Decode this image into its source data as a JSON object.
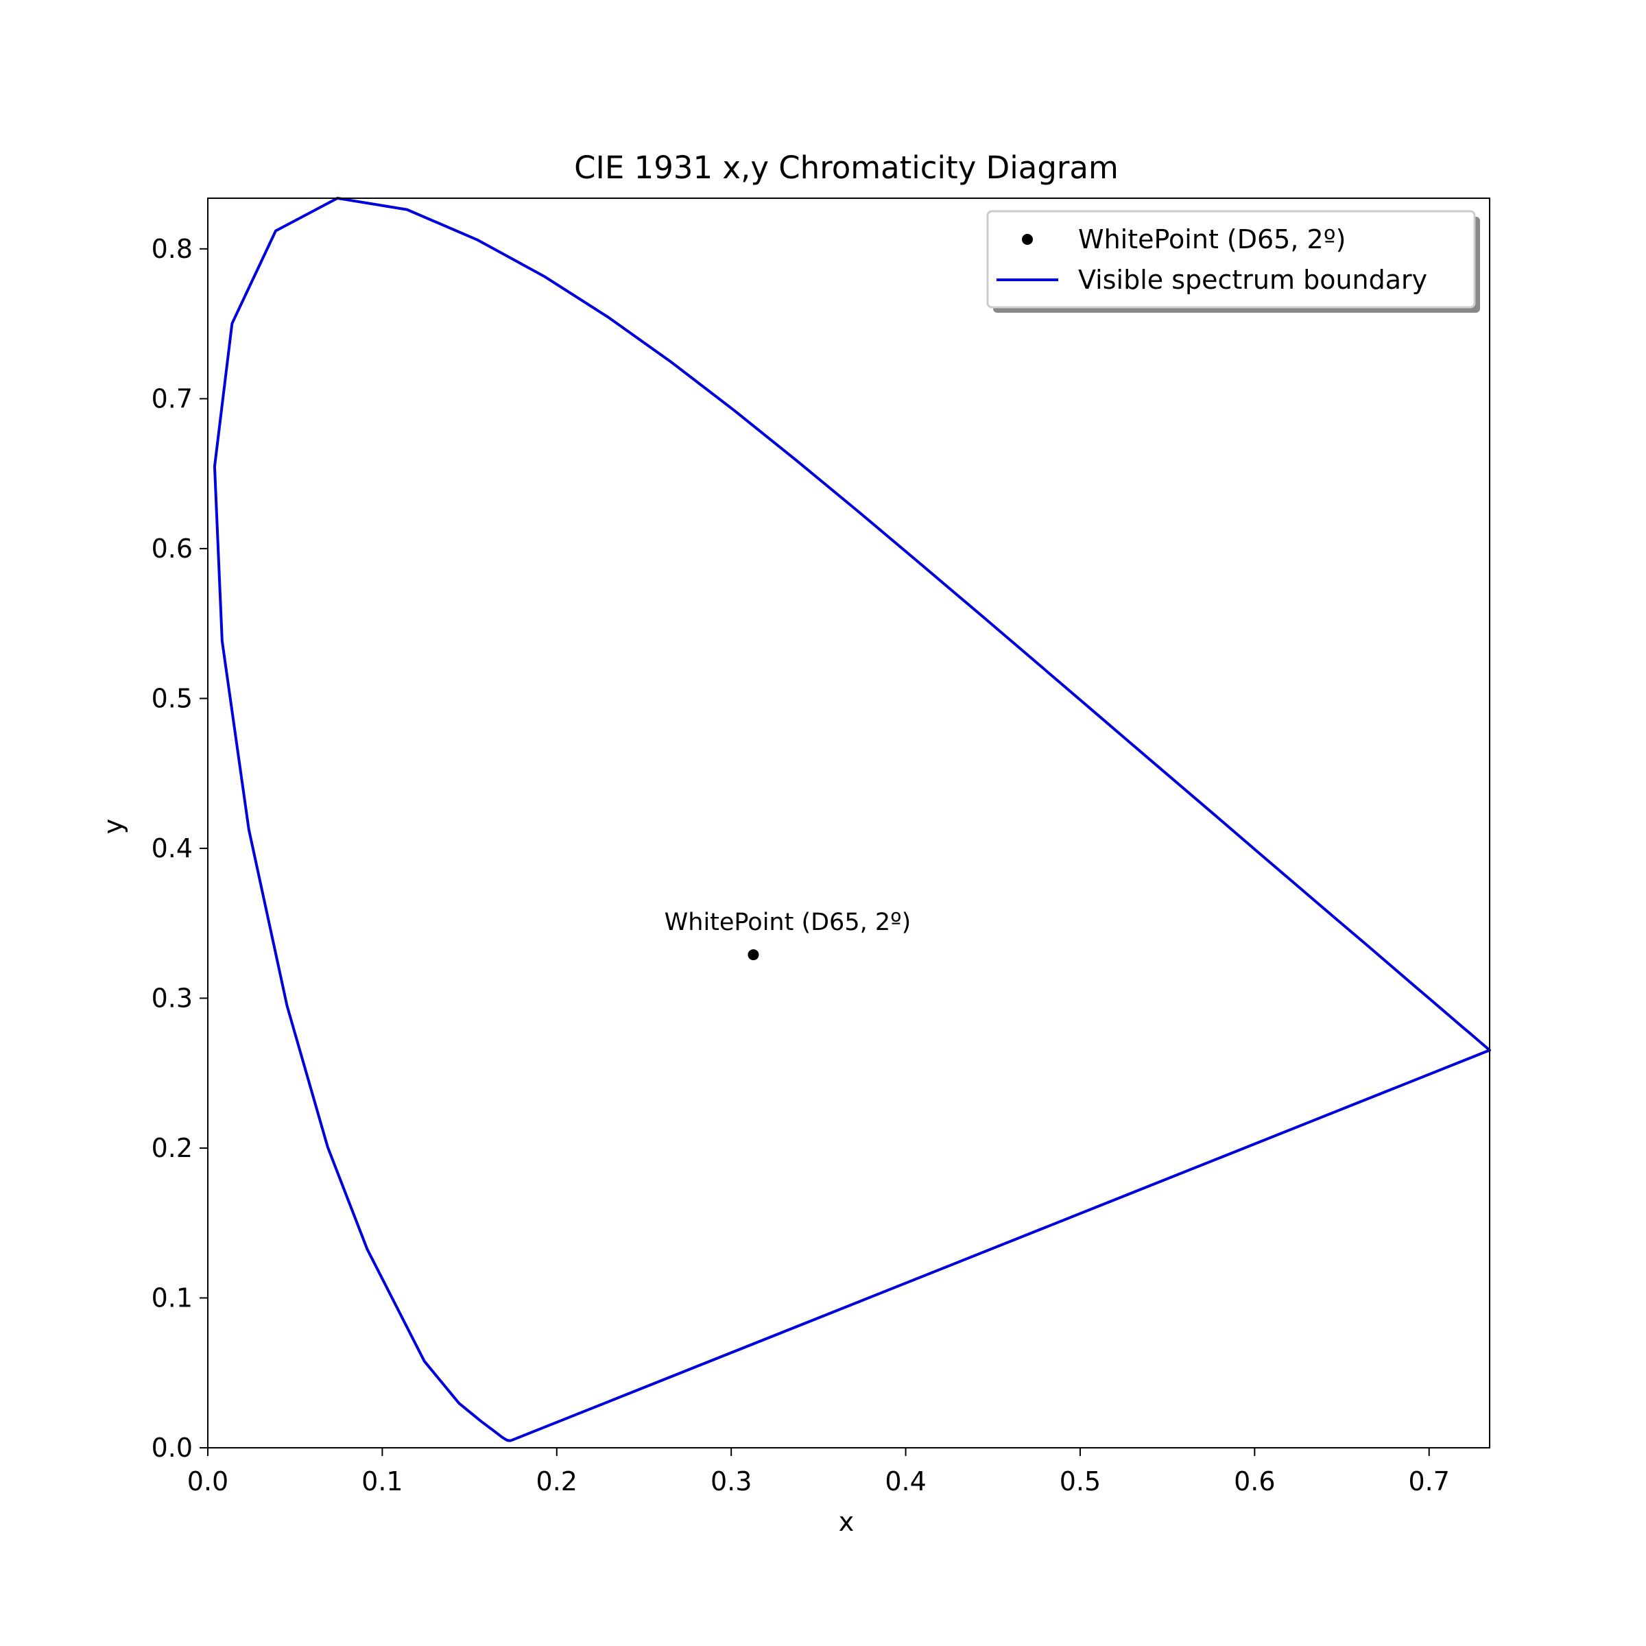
{
  "chart_data": {
    "type": "line",
    "title": "CIE 1931 x,y Chromaticity Diagram",
    "xlabel": "x",
    "ylabel": "y",
    "xlim": [
      0.0,
      0.7347
    ],
    "ylim": [
      0.0,
      0.8338
    ],
    "xticks": [
      0.0,
      0.1,
      0.2,
      0.3,
      0.4,
      0.5,
      0.6,
      0.7
    ],
    "xtick_labels": [
      "0.0",
      "0.1",
      "0.2",
      "0.3",
      "0.4",
      "0.5",
      "0.6",
      "0.7"
    ],
    "yticks": [
      0.0,
      0.1,
      0.2,
      0.3,
      0.4,
      0.5,
      0.6,
      0.7,
      0.8
    ],
    "ytick_labels": [
      "0.0",
      "0.1",
      "0.2",
      "0.3",
      "0.4",
      "0.5",
      "0.6",
      "0.7",
      "0.8"
    ],
    "grid": false,
    "legend_position": "top-right",
    "series": [
      {
        "name": "Visible spectrum boundary",
        "kind": "line",
        "color": "#0000dd",
        "x": [
          0.1741,
          0.1738,
          0.1733,
          0.1726,
          0.1714,
          0.1689,
          0.1644,
          0.1566,
          0.144,
          0.1241,
          0.0913,
          0.0687,
          0.0454,
          0.0235,
          0.0082,
          0.0039,
          0.0139,
          0.0389,
          0.0743,
          0.1142,
          0.1547,
          0.1929,
          0.2296,
          0.2658,
          0.3016,
          0.3373,
          0.3731,
          0.4087,
          0.4441,
          0.4788,
          0.5125,
          0.5448,
          0.5752,
          0.6029,
          0.627,
          0.6482,
          0.6658,
          0.6801,
          0.6915,
          0.7006,
          0.7079,
          0.714,
          0.719,
          0.723,
          0.726,
          0.7283,
          0.73,
          0.7311,
          0.732,
          0.7327,
          0.7334,
          0.734,
          0.7344,
          0.7346,
          0.7347,
          0.1741
        ],
        "y": [
          0.005,
          0.0049,
          0.0048,
          0.0048,
          0.0051,
          0.0069,
          0.0109,
          0.0177,
          0.0297,
          0.0578,
          0.1327,
          0.2007,
          0.295,
          0.4127,
          0.5384,
          0.6548,
          0.7502,
          0.812,
          0.8338,
          0.8262,
          0.8059,
          0.7816,
          0.7543,
          0.7243,
          0.6923,
          0.6589,
          0.6245,
          0.5896,
          0.5547,
          0.5202,
          0.4866,
          0.4544,
          0.4242,
          0.3965,
          0.3725,
          0.3514,
          0.334,
          0.3197,
          0.3083,
          0.2993,
          0.292,
          0.2859,
          0.2809,
          0.277,
          0.274,
          0.2717,
          0.27,
          0.2689,
          0.268,
          0.2673,
          0.2666,
          0.266,
          0.2656,
          0.2654,
          0.2653,
          0.005
        ]
      },
      {
        "name": "WhitePoint (D65, 2º)",
        "kind": "scatter",
        "color": "#000000",
        "x": [
          0.3127
        ],
        "y": [
          0.329
        ]
      }
    ],
    "annotations": [
      {
        "text": "WhitePoint (D65, 2º)",
        "x": 0.3127,
        "y": 0.329
      }
    ]
  }
}
